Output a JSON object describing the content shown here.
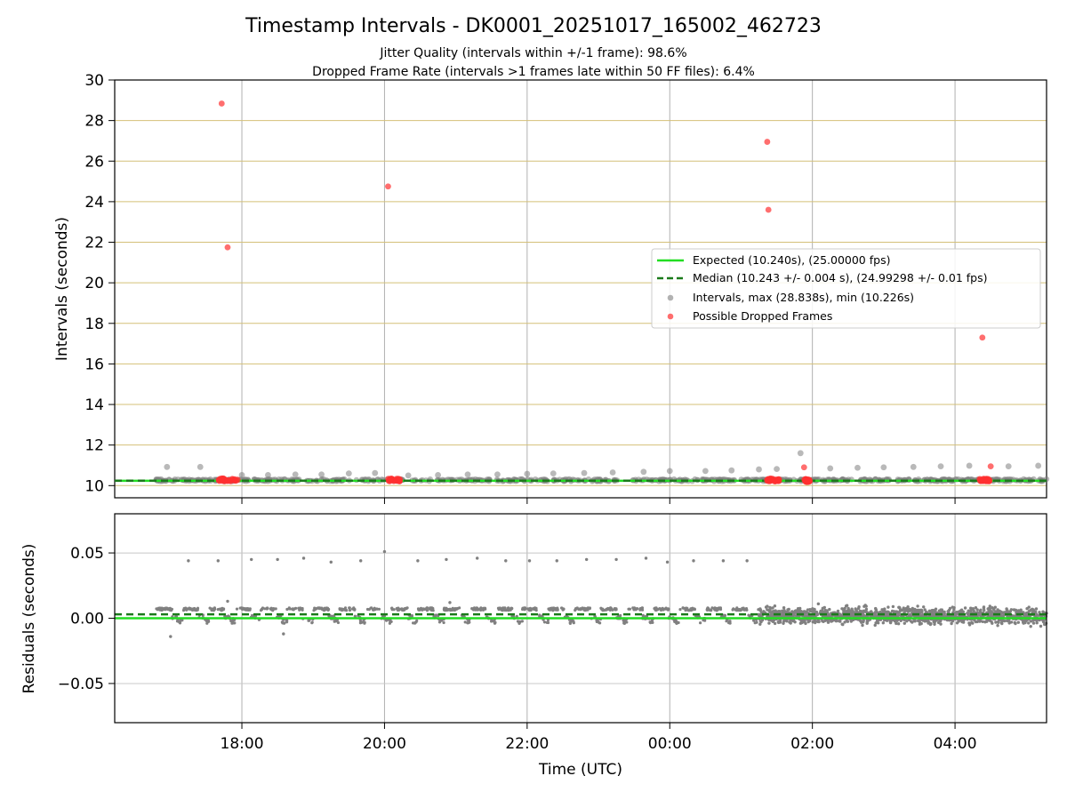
{
  "chart_data": [
    {
      "type": "scatter",
      "title": "Timestamp Intervals - DK0001_20251017_165002_462723",
      "subtitle_lines": [
        "Jitter Quality (intervals within +/-1 frame): 98.6%",
        "Dropped Frame Rate (intervals >1 frames late within 50 FF files): 6.4%"
      ],
      "ylabel": "Intervals (seconds)",
      "xlim": [
        "16:13",
        "05:17"
      ],
      "ylim": [
        9.4,
        30
      ],
      "yticks": [
        10,
        12,
        14,
        16,
        18,
        20,
        22,
        24,
        26,
        28,
        30
      ],
      "xticks": [
        "18:00",
        "20:00",
        "22:00",
        "00:00",
        "02:00",
        "04:00"
      ],
      "grid": true,
      "legend_position": "center-right",
      "expected_line": {
        "name": "Expected (10.240s), (25.00000 fps)",
        "y": 10.24,
        "color": "#22dd22"
      },
      "median_line": {
        "name": "Median (10.243 +/- 0.004 s), (24.99298 +/- 0.01 fps)",
        "y": 10.243,
        "color": "#1a7a1a"
      },
      "series": [
        {
          "name": "Intervals, max (28.838s), min (10.226s)",
          "color": "#808080",
          "band": {
            "x_range": [
              "16:48",
              "05:17"
            ],
            "y_range": [
              10.22,
              10.32
            ]
          },
          "points": [
            {
              "x": "16:57",
              "y": 10.92
            },
            {
              "x": "17:25",
              "y": 10.92
            },
            {
              "x": "18:00",
              "y": 10.52
            },
            {
              "x": "18:22",
              "y": 10.52
            },
            {
              "x": "18:45",
              "y": 10.55
            },
            {
              "x": "19:07",
              "y": 10.55
            },
            {
              "x": "19:30",
              "y": 10.6
            },
            {
              "x": "19:52",
              "y": 10.62
            },
            {
              "x": "20:20",
              "y": 10.5
            },
            {
              "x": "20:45",
              "y": 10.52
            },
            {
              "x": "21:10",
              "y": 10.55
            },
            {
              "x": "21:35",
              "y": 10.55
            },
            {
              "x": "22:00",
              "y": 10.58
            },
            {
              "x": "22:22",
              "y": 10.6
            },
            {
              "x": "22:48",
              "y": 10.62
            },
            {
              "x": "23:12",
              "y": 10.65
            },
            {
              "x": "23:38",
              "y": 10.68
            },
            {
              "x": "00:00",
              "y": 10.72
            },
            {
              "x": "00:30",
              "y": 10.72
            },
            {
              "x": "00:52",
              "y": 10.75
            },
            {
              "x": "01:15",
              "y": 10.8
            },
            {
              "x": "01:30",
              "y": 10.82
            },
            {
              "x": "01:50",
              "y": 11.6
            },
            {
              "x": "02:15",
              "y": 10.85
            },
            {
              "x": "02:38",
              "y": 10.88
            },
            {
              "x": "03:00",
              "y": 10.9
            },
            {
              "x": "03:25",
              "y": 10.92
            },
            {
              "x": "03:48",
              "y": 10.95
            },
            {
              "x": "04:12",
              "y": 10.98
            },
            {
              "x": "04:45",
              "y": 10.95
            },
            {
              "x": "05:10",
              "y": 10.98
            }
          ]
        },
        {
          "name": "Possible Dropped Frames",
          "color": "#ff3030",
          "clusters": [
            {
              "x_range": [
                "17:40",
                "18:00"
              ],
              "y": 10.28
            },
            {
              "x_range": [
                "20:03",
                "20:13"
              ],
              "y": 10.28
            },
            {
              "x_range": [
                "01:22",
                "01:32"
              ],
              "y": 10.28
            },
            {
              "x_range": [
                "01:53",
                "01:58"
              ],
              "y": 10.25
            },
            {
              "x_range": [
                "04:20",
                "04:30"
              ],
              "y": 10.28
            }
          ],
          "points": [
            {
              "x": "17:43",
              "y": 28.84
            },
            {
              "x": "17:48",
              "y": 21.75
            },
            {
              "x": "20:03",
              "y": 24.75
            },
            {
              "x": "01:22",
              "y": 26.95
            },
            {
              "x": "01:23",
              "y": 23.6
            },
            {
              "x": "01:53",
              "y": 10.9
            },
            {
              "x": "04:23",
              "y": 17.3
            },
            {
              "x": "04:30",
              "y": 10.95
            }
          ]
        }
      ]
    },
    {
      "type": "scatter",
      "xlabel": "Time (UTC)",
      "ylabel": "Residuals (seconds)",
      "xlim": [
        "16:13",
        "05:17"
      ],
      "ylim": [
        -0.08,
        0.08
      ],
      "yticks": [
        0.05,
        0.0,
        -0.05
      ],
      "ytick_labels": [
        "0.05",
        "0.00",
        "−0.05"
      ],
      "xticks": [
        "18:00",
        "20:00",
        "22:00",
        "00:00",
        "02:00",
        "04:00"
      ],
      "grid": true,
      "expected_line": {
        "y": 0.0,
        "color": "#22dd22"
      },
      "median_line": {
        "y": 0.003,
        "color": "#1a7a1a"
      },
      "series": [
        {
          "name": "Residuals",
          "color": "#808080",
          "upper_points": [
            {
              "x": "17:15",
              "y": 0.044
            },
            {
              "x": "17:40",
              "y": 0.044
            },
            {
              "x": "18:08",
              "y": 0.045
            },
            {
              "x": "18:30",
              "y": 0.045
            },
            {
              "x": "18:52",
              "y": 0.046
            },
            {
              "x": "19:15",
              "y": 0.043
            },
            {
              "x": "19:40",
              "y": 0.044
            },
            {
              "x": "20:00",
              "y": 0.051
            },
            {
              "x": "20:28",
              "y": 0.044
            },
            {
              "x": "20:52",
              "y": 0.045
            },
            {
              "x": "21:18",
              "y": 0.046
            },
            {
              "x": "21:42",
              "y": 0.044
            },
            {
              "x": "22:02",
              "y": 0.044
            },
            {
              "x": "22:25",
              "y": 0.044
            },
            {
              "x": "22:50",
              "y": 0.045
            },
            {
              "x": "23:15",
              "y": 0.045
            },
            {
              "x": "23:40",
              "y": 0.046
            },
            {
              "x": "23:58",
              "y": 0.043
            },
            {
              "x": "00:20",
              "y": 0.044
            },
            {
              "x": "00:45",
              "y": 0.044
            },
            {
              "x": "01:05",
              "y": 0.044
            }
          ],
          "outlier_points": [
            {
              "x": "17:00",
              "y": -0.014
            },
            {
              "x": "17:48",
              "y": 0.013
            },
            {
              "x": "18:35",
              "y": -0.012
            },
            {
              "x": "20:55",
              "y": 0.012
            },
            {
              "x": "02:05",
              "y": 0.011
            }
          ]
        }
      ]
    }
  ],
  "legend": {
    "items": [
      {
        "label": "Expected (10.240s), (25.00000 fps)",
        "kind": "solid-line",
        "color": "#22dd22"
      },
      {
        "label": "Median (10.243 +/- 0.004 s), (24.99298 +/- 0.01 fps)",
        "kind": "dashed-line",
        "color": "#1a7a1a"
      },
      {
        "label": "Intervals, max (28.838s), min (10.226s)",
        "kind": "dot",
        "color": "#808080"
      },
      {
        "label": "Possible Dropped Frames",
        "kind": "dot",
        "color": "#ff3030"
      }
    ]
  }
}
